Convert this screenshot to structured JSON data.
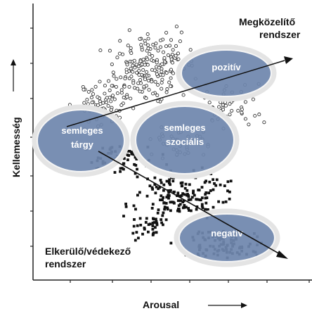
{
  "labels": {
    "top_right_line1": "Megközelítő",
    "top_right_line2": "rendszer",
    "bottom_left_line1": "Elkerülő/védekező",
    "bottom_left_line2": "rendszer",
    "y_axis": "Kellemesség",
    "x_axis": "Arousal"
  },
  "ellipses": [
    {
      "id": "pozitiv",
      "lines": [
        "pozitív"
      ]
    },
    {
      "id": "semleges-targy",
      "lines": [
        "semleges",
        "tárgy"
      ]
    },
    {
      "id": "semleges-szocialis",
      "lines": [
        "semleges",
        "szociális"
      ]
    },
    {
      "id": "negativ",
      "lines": [
        "negatív"
      ]
    }
  ],
  "colors": {
    "ellipse_fill": "#6f87ad",
    "ellipse_border": "#e4e4e4",
    "open_markers": "#333333",
    "filled_markers": "#111111"
  }
}
